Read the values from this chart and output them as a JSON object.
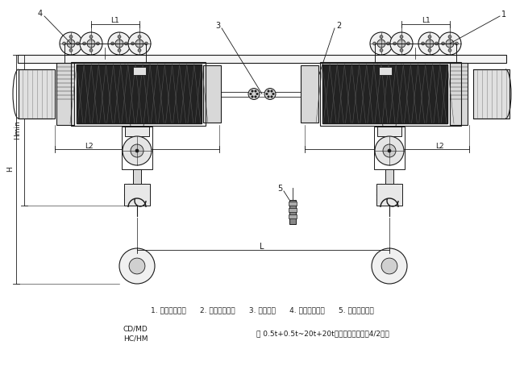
{
  "bg_color": "#ffffff",
  "line_color": "#1a1a1a",
  "title_line1": "CD/MD",
  "title_line2": "HC/HM",
  "title_main": "型 0.5t+0.5t~20t+20t双挂点电动葯莘（4/2结）",
  "legend": "1. 正相电动葯莘      2. 同步机械联锁      3. 连接装置      4. 异相电动葯莘      5. 同步电气控制",
  "fig_width": 6.5,
  "fig_height": 4.54,
  "dpi": 100
}
